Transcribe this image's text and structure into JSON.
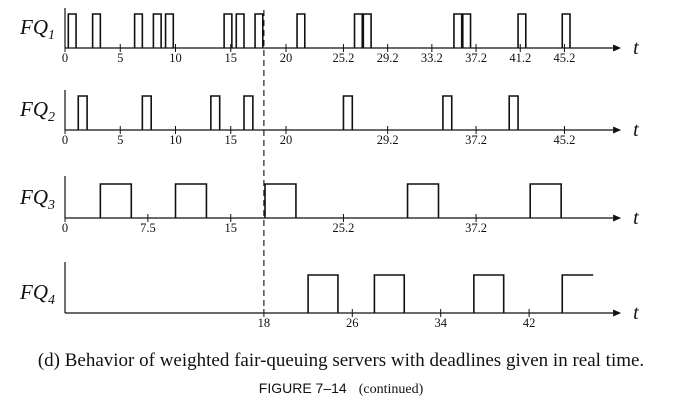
{
  "tracks": [
    {
      "name": "FQ",
      "subscript": "1",
      "ticks": [
        {
          "t": 0,
          "label": "0"
        },
        {
          "t": 5,
          "label": "5"
        },
        {
          "t": 10,
          "label": "10"
        },
        {
          "t": 15,
          "label": "15"
        },
        {
          "t": 20,
          "label": "20"
        },
        {
          "t": 25.2,
          "label": "25.2"
        },
        {
          "t": 29.2,
          "label": "29.2"
        },
        {
          "t": 33.2,
          "label": "33.2"
        },
        {
          "t": 37.2,
          "label": "37.2"
        },
        {
          "t": 41.2,
          "label": "41.2"
        },
        {
          "t": 45.2,
          "label": "45.2"
        }
      ],
      "pulses": [
        [
          0.3,
          1.0
        ],
        [
          2.5,
          3.2
        ],
        [
          6.3,
          7.0
        ],
        [
          8.0,
          8.7
        ],
        [
          9.1,
          9.8
        ],
        [
          14.4,
          15.1
        ],
        [
          15.5,
          16.2
        ],
        [
          17.2,
          17.9
        ],
        [
          21.0,
          21.7
        ],
        [
          26.2,
          26.9
        ],
        [
          27.0,
          27.7
        ],
        [
          35.2,
          35.9
        ],
        [
          36.0,
          36.7
        ],
        [
          41.0,
          41.7
        ],
        [
          45.0,
          45.7
        ]
      ],
      "axis_end": 49.6,
      "axis_label": "t"
    },
    {
      "name": "FQ",
      "subscript": "2",
      "ticks": [
        {
          "t": 0,
          "label": "0"
        },
        {
          "t": 5,
          "label": "5"
        },
        {
          "t": 10,
          "label": "10"
        },
        {
          "t": 15,
          "label": "15"
        },
        {
          "t": 20,
          "label": "20"
        },
        {
          "t": 29.2,
          "label": "29.2"
        },
        {
          "t": 37.2,
          "label": "37.2"
        },
        {
          "t": 45.2,
          "label": "45.2"
        }
      ],
      "pulses": [
        [
          1.2,
          2.0
        ],
        [
          7.0,
          7.8
        ],
        [
          13.2,
          14.0
        ],
        [
          16.2,
          17.0
        ],
        [
          25.2,
          26.0
        ],
        [
          34.2,
          35.0
        ],
        [
          40.2,
          41.0
        ]
      ],
      "axis_end": 49.6,
      "axis_label": "t"
    },
    {
      "name": "FQ",
      "subscript": "3",
      "ticks": [
        {
          "t": 0,
          "label": "0"
        },
        {
          "t": 7.5,
          "label": "7.5"
        },
        {
          "t": 15,
          "label": "15"
        },
        {
          "t": 25.2,
          "label": "25.2"
        },
        {
          "t": 37.2,
          "label": "37.2"
        }
      ],
      "pulses": [
        [
          3.2,
          6.0
        ],
        [
          10.0,
          12.8
        ],
        [
          18.1,
          20.9
        ],
        [
          31.0,
          33.8
        ],
        [
          42.1,
          44.9
        ]
      ],
      "axis_end": 49.6,
      "axis_label": "t"
    },
    {
      "name": "FQ",
      "subscript": "4",
      "ticks": [
        {
          "t": 18,
          "label": "18"
        },
        {
          "t": 26,
          "label": "26"
        },
        {
          "t": 34,
          "label": "34"
        },
        {
          "t": 42,
          "label": "42"
        }
      ],
      "pulses": [
        [
          22.0,
          24.7
        ],
        [
          28.0,
          30.7
        ],
        [
          37.0,
          39.7
        ],
        [
          45.0,
          47.8,
          "open"
        ]
      ],
      "axis_end": 49.6,
      "axis_label": "t"
    }
  ],
  "deadline_t": 18,
  "caption": "(d) Behavior of weighted fair-queuing servers with deadlines given in real time.",
  "figure_number": "FIGURE 7–14",
  "figure_note": "(continued)"
}
